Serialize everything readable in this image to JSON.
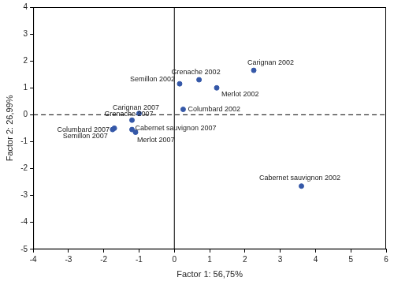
{
  "chart_data": {
    "type": "scatter",
    "x_label": "Factor 1: 56,75%",
    "y_label": "Factor 2: 26,99%",
    "labels": [
      "Carignan 2002",
      "Grenache 2002",
      "Semillon 2002",
      "Merlot 2002",
      "Columbard 2002",
      "Cabernet sauvignon 2002",
      "Carignan 2007",
      "Grenache 2007",
      "Columbard 2007",
      "Semillon 2007",
      "Cabernet sauvignon 2007",
      "Merlot 2007"
    ],
    "x": [
      2.25,
      0.7,
      0.15,
      1.2,
      0.25,
      3.6,
      -1.0,
      -1.2,
      -1.7,
      -1.75,
      -1.2,
      -1.1
    ],
    "values": [
      1.65,
      1.3,
      1.15,
      1.0,
      0.2,
      -2.65,
      0.05,
      -0.2,
      -0.5,
      -0.55,
      -0.55,
      -0.65
    ],
    "color": "#3558a8",
    "xlim": [
      -4,
      6
    ],
    "xticks": [
      -4,
      -3,
      -2,
      -1,
      0,
      1,
      2,
      3,
      4,
      5,
      6
    ],
    "ylim": [
      -5,
      4
    ],
    "yticks": [
      -5,
      -4,
      -3,
      -2,
      -1,
      0,
      1,
      2,
      3,
      4
    ],
    "grid": false
  }
}
